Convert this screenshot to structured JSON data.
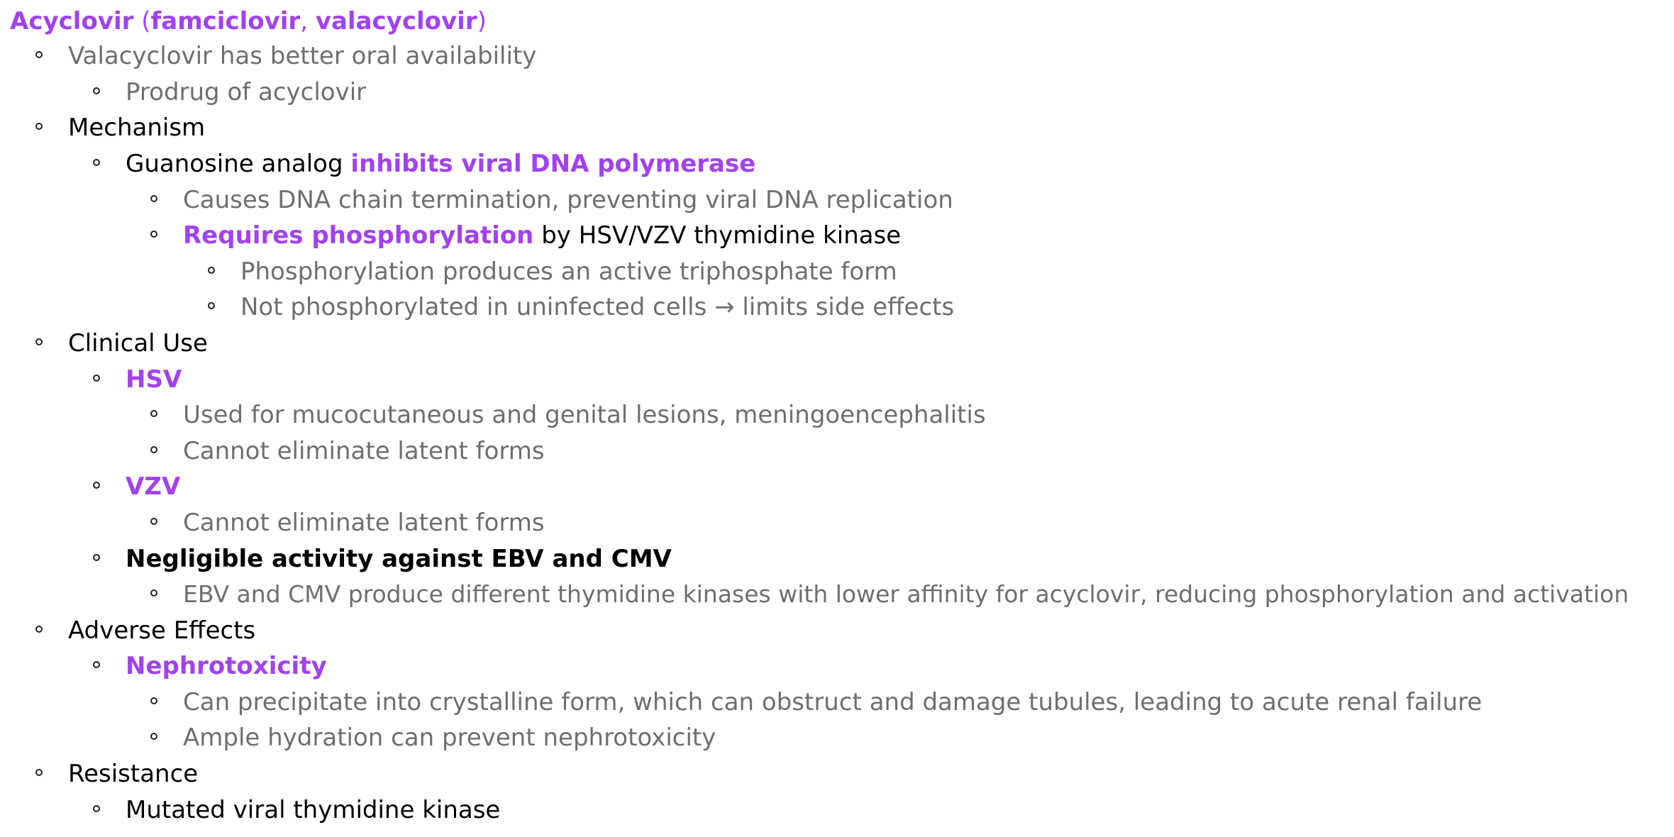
{
  "title": {
    "main": "Acyclovir",
    "paren_open": " (",
    "famciclovir": "famciclovir",
    "comma": ", ",
    "valacyclovir": "valacyclovir",
    "paren_close": ")"
  },
  "items": {
    "valacyclovir_availability": "Valacyclovir has better oral availability",
    "prodrug": "Prodrug of acyclovir",
    "mechanism": "Mechanism",
    "guanosine_prefix": "Guanosine analog ",
    "guanosine_highlight": "inhibits viral DNA polymerase",
    "chain_termination": "Causes DNA chain termination, preventing viral DNA replication",
    "requires_highlight": "Requires phosphorylation",
    "requires_suffix": " by HSV/VZV thymidine kinase",
    "triphosphate": "Phosphorylation produces an active triphosphate form",
    "not_phosphorylated": "Not phosphorylated in uninfected cells → limits side effects",
    "clinical_use": "Clinical Use",
    "hsv": "HSV",
    "mucocutaneous": "Used for mucocutaneous and genital lesions, meningoencephalitis",
    "cannot_eliminate_hsv": "Cannot eliminate latent forms",
    "vzv": "VZV",
    "cannot_eliminate_vzv": "Cannot eliminate latent forms",
    "negligible": "Negligible activity against EBV and CMV",
    "ebv_cmv": "EBV and CMV produce different thymidine kinases with lower affinity for acyclovir, reducing phosphorylation and activation",
    "adverse_effects": "Adverse Effects",
    "nephrotoxicity": "Nephrotoxicity",
    "precipitate": "Can precipitate into crystalline form, which can obstruct and damage tubules, leading to acute renal failure",
    "hydration": "Ample hydration can prevent nephrotoxicity",
    "resistance": "Resistance",
    "mutated_tk": "Mutated viral thymidine kinase"
  },
  "colors": {
    "accent_purple": "#a142f0",
    "body_grey": "#6e6e6e",
    "body_black": "#000000"
  }
}
